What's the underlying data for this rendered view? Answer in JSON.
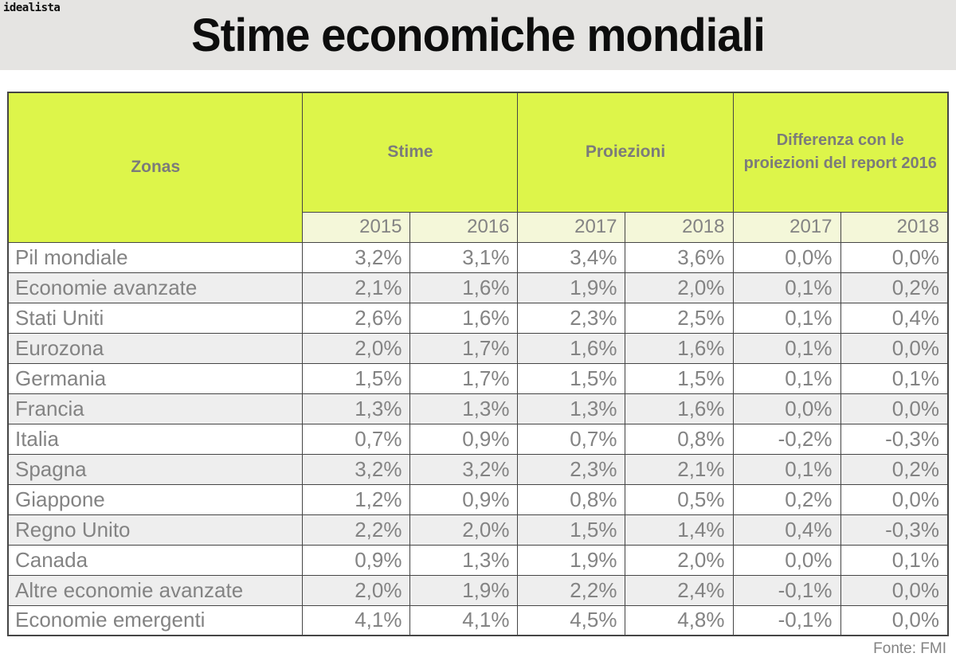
{
  "colors": {
    "banner_bg": "#e5e4e2",
    "title_color": "#0d0d0d",
    "header_green": "#ddf54a",
    "year_row_bg": "#f4f7d9",
    "row_bg": "#ffffff",
    "row_alt_bg": "#eeeeee",
    "text_gray": "#838383",
    "header_text": "#7b7b7b",
    "grid_line": "#454545"
  },
  "banner": {
    "logo": "idealista",
    "title": "Stime economiche mondiali"
  },
  "table": {
    "corner_label": "Zonas",
    "groups": [
      {
        "label": "Stime",
        "years": [
          "2015",
          "2016"
        ]
      },
      {
        "label": "Proiezioni",
        "years": [
          "2017",
          "2018"
        ]
      },
      {
        "label": "Differenza con le proiezioni del report 2016",
        "years": [
          "2017",
          "2018"
        ]
      }
    ],
    "rows": [
      {
        "zona": "Pil mondiale",
        "values": [
          "3,2%",
          "3,1%",
          "3,4%",
          "3,6%",
          "0,0%",
          "0,0%"
        ]
      },
      {
        "zona": "Economie avanzate",
        "values": [
          "2,1%",
          "1,6%",
          "1,9%",
          "2,0%",
          "0,1%",
          "0,2%"
        ]
      },
      {
        "zona": "Stati Uniti",
        "values": [
          "2,6%",
          "1,6%",
          "2,3%",
          "2,5%",
          "0,1%",
          "0,4%"
        ]
      },
      {
        "zona": "Eurozona",
        "values": [
          "2,0%",
          "1,7%",
          "1,6%",
          "1,6%",
          "0,1%",
          "0,0%"
        ]
      },
      {
        "zona": "Germania",
        "values": [
          "1,5%",
          "1,7%",
          "1,5%",
          "1,5%",
          "0,1%",
          "0,1%"
        ]
      },
      {
        "zona": "Francia",
        "values": [
          "1,3%",
          "1,3%",
          "1,3%",
          "1,6%",
          "0,0%",
          "0,0%"
        ]
      },
      {
        "zona": "Italia",
        "values": [
          "0,7%",
          "0,9%",
          "0,7%",
          "0,8%",
          "-0,2%",
          "-0,3%"
        ]
      },
      {
        "zona": "Spagna",
        "values": [
          "3,2%",
          "3,2%",
          "2,3%",
          "2,1%",
          "0,1%",
          "0,2%"
        ]
      },
      {
        "zona": "Giappone",
        "values": [
          "1,2%",
          "0,9%",
          "0,8%",
          "0,5%",
          "0,2%",
          "0,0%"
        ]
      },
      {
        "zona": "Regno Unito",
        "values": [
          "2,2%",
          "2,0%",
          "1,5%",
          "1,4%",
          "0,4%",
          "-0,3%"
        ]
      },
      {
        "zona": "Canada",
        "values": [
          "0,9%",
          "1,3%",
          "1,9%",
          "2,0%",
          "0,0%",
          "0,1%"
        ]
      },
      {
        "zona": "Altre economie avanzate",
        "values": [
          "2,0%",
          "1,9%",
          "2,2%",
          "2,4%",
          "-0,1%",
          "0,0%"
        ]
      },
      {
        "zona": "Economie emergenti",
        "values": [
          "4,1%",
          "4,1%",
          "4,5%",
          "4,8%",
          "-0,1%",
          "0,0%"
        ]
      }
    ]
  },
  "footer": {
    "source": "Fonte: FMI"
  },
  "chart_data": {
    "type": "table",
    "title": "Stime economiche mondiali",
    "columns": [
      "Zonas",
      "Stime 2015",
      "Stime 2016",
      "Proiezioni 2017",
      "Proiezioni 2018",
      "Differenza con le proiezioni del report 2016 - 2017",
      "Differenza con le proiezioni del report 2016 - 2018"
    ],
    "units": "percent (comma decimal separator)",
    "rows": [
      [
        "Pil mondiale",
        3.2,
        3.1,
        3.4,
        3.6,
        0.0,
        0.0
      ],
      [
        "Economie avanzate",
        2.1,
        1.6,
        1.9,
        2.0,
        0.1,
        0.2
      ],
      [
        "Stati Uniti",
        2.6,
        1.6,
        2.3,
        2.5,
        0.1,
        0.4
      ],
      [
        "Eurozona",
        2.0,
        1.7,
        1.6,
        1.6,
        0.1,
        0.0
      ],
      [
        "Germania",
        1.5,
        1.7,
        1.5,
        1.5,
        0.1,
        0.1
      ],
      [
        "Francia",
        1.3,
        1.3,
        1.3,
        1.6,
        0.0,
        0.0
      ],
      [
        "Italia",
        0.7,
        0.9,
        0.7,
        0.8,
        -0.2,
        -0.3
      ],
      [
        "Spagna",
        3.2,
        3.2,
        2.3,
        2.1,
        0.1,
        0.2
      ],
      [
        "Giappone",
        1.2,
        0.9,
        0.8,
        0.5,
        0.2,
        0.0
      ],
      [
        "Regno Unito",
        2.2,
        2.0,
        1.5,
        1.4,
        0.4,
        -0.3
      ],
      [
        "Canada",
        0.9,
        1.3,
        1.9,
        2.0,
        0.0,
        0.1
      ],
      [
        "Altre economie avanzate",
        2.0,
        1.9,
        2.2,
        2.4,
        -0.1,
        0.0
      ],
      [
        "Economie emergenti",
        4.1,
        4.1,
        4.5,
        4.8,
        -0.1,
        0.0
      ]
    ],
    "source": "Fonte: FMI"
  }
}
